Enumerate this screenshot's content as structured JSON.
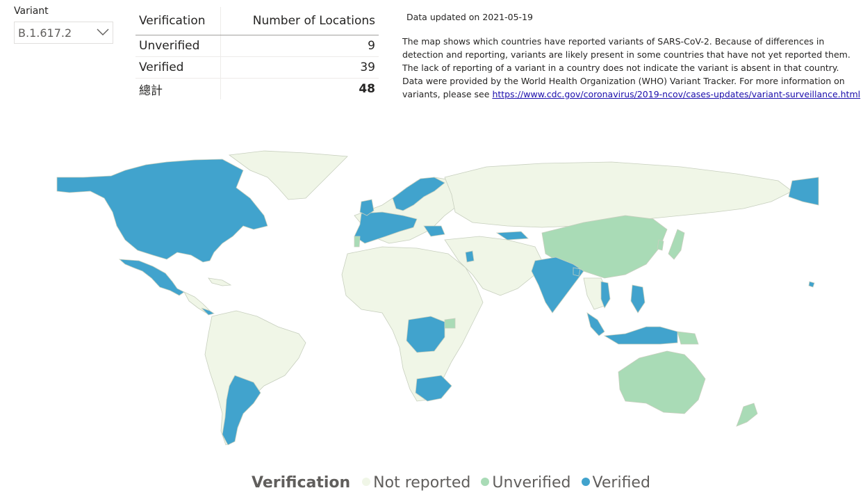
{
  "slicer": {
    "title": "Variant",
    "selected": "B.1.617.2"
  },
  "table": {
    "headers": [
      "Verification",
      "Number of Locations"
    ],
    "rows": [
      {
        "label": "Unverified",
        "value": "9"
      },
      {
        "label": "Verified",
        "value": "39"
      }
    ],
    "total": {
      "label": "總計",
      "value": "48"
    }
  },
  "info": {
    "updated": "Data updated on 2021-05-19",
    "description": "The map shows which countries have reported variants of SARS-CoV-2. Because of differences in detection and reporting, variants are likely present in some countries that have not yet reported them. The lack of reporting of a variant in a country does not indicate the variant is absent in that country. Data were provided by the World Health Organization (WHO) Variant Tracker. For more information on variants, please see",
    "link": "https://www.cdc.gov/coronavirus/2019-ncov/cases-updates/variant-surveillance.html"
  },
  "legend": {
    "title": "Verification",
    "items": [
      {
        "label": "Not reported",
        "color": "#f0f6e7"
      },
      {
        "label": "Unverified",
        "color": "#a9dbb6"
      },
      {
        "label": "Verified",
        "color": "#41a3cd"
      }
    ]
  },
  "colors": {
    "not_reported": "#f0f6e7",
    "unverified": "#a9dbb6",
    "verified": "#41a3cd"
  },
  "icons": {
    "dropdown": "chevron-down-icon"
  }
}
